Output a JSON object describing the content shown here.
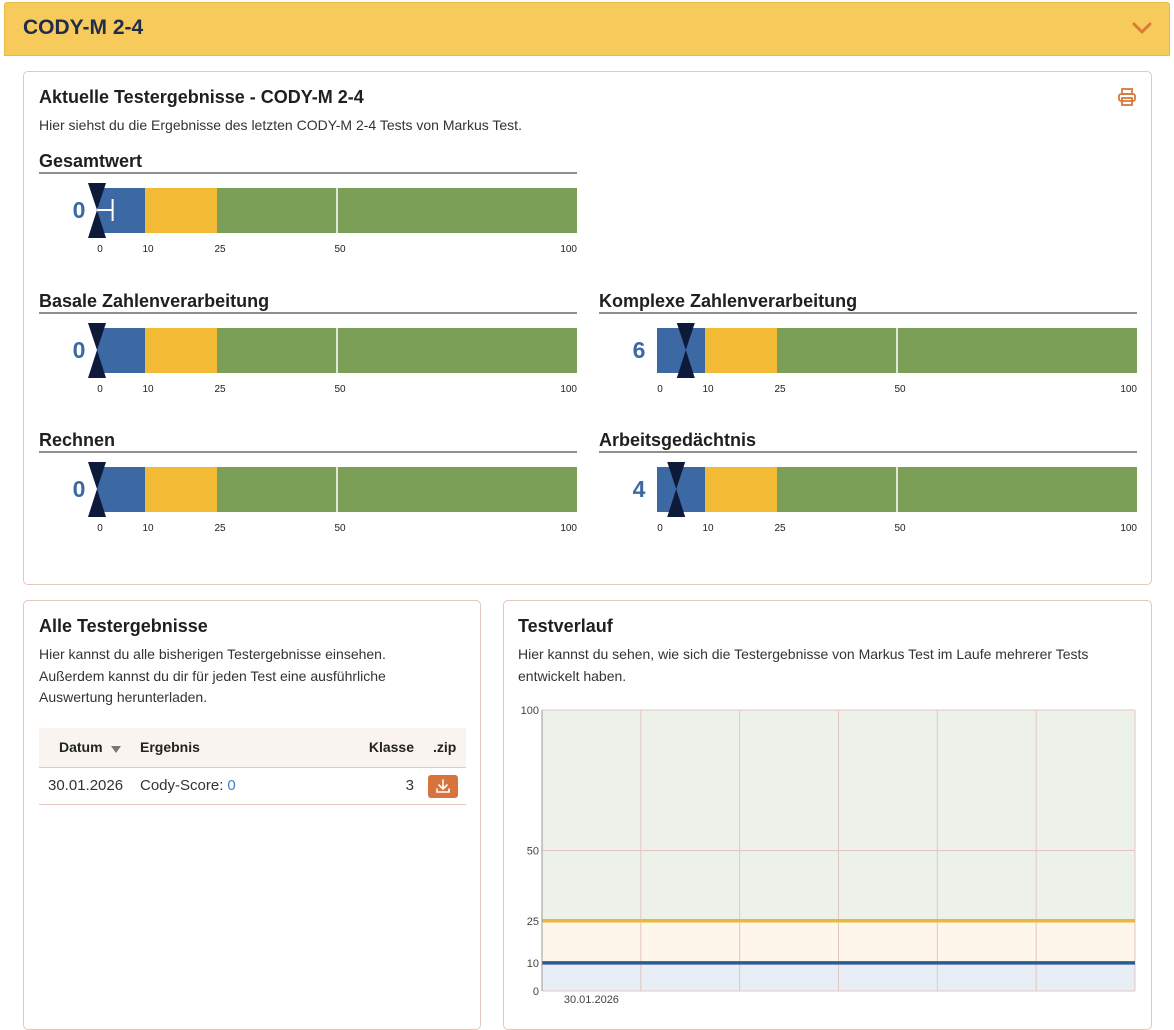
{
  "header": {
    "title": "CODY-M 2-4"
  },
  "current": {
    "title": "Aktuelle Testergebnisse - CODY-M 2-4",
    "description": "Hier siehst du die Ergebnisse des letzten CODY-M 2-4 Tests von Markus Test.",
    "scale": {
      "xlim": [
        0,
        100
      ],
      "ticks": [
        0,
        10,
        25,
        50,
        100
      ],
      "bands": [
        {
          "from": 0,
          "to": 10,
          "color": "#3c68a3"
        },
        {
          "from": 10,
          "to": 25,
          "color": "#f3bb35"
        },
        {
          "from": 25,
          "to": 100,
          "color": "#7c9f58"
        }
      ]
    },
    "results": [
      {
        "label": "Gesamtwert",
        "value": 0,
        "interval": [
          0,
          2
        ]
      },
      {
        "label": "Basale Zahlenverarbeitung",
        "value": 0
      },
      {
        "label": "Komplexe Zahlenverarbeitung",
        "value": 6
      },
      {
        "label": "Rechnen",
        "value": 0
      },
      {
        "label": "Arbeitsgedächtnis",
        "value": 4
      }
    ]
  },
  "all_results": {
    "title": "Alle Testergebnisse",
    "description": "Hier kannst du alle bisherigen Testergebnisse einsehen. Außerdem kannst du dir für jeden Test eine ausführliche Auswertung herunterladen.",
    "columns": [
      "Datum",
      "Ergebnis",
      "Klasse",
      ".zip"
    ],
    "rows": [
      {
        "date": "30.01.2026",
        "result_label": "Cody-Score:",
        "score": 0,
        "class": 3
      }
    ]
  },
  "history": {
    "title": "Testverlauf",
    "description": "Hier kannst du sehen, wie sich die Testergebnisse von Markus Test im Laufe mehrerer Tests entwickelt haben.",
    "chart_data": {
      "type": "band",
      "categories": [
        "30.01.2026"
      ],
      "ylim": [
        0,
        100
      ],
      "yticks": [
        0,
        10,
        25,
        50,
        100
      ],
      "grid": true,
      "bands": [
        {
          "from": 0,
          "to": 10,
          "fill": "#e8eef6",
          "line": "#2c5a95"
        },
        {
          "from": 10,
          "to": 25,
          "fill": "#fef6e8",
          "line": "#e6b83c"
        },
        {
          "from": 25,
          "to": 100,
          "fill": "#ecf2ea"
        }
      ]
    }
  }
}
